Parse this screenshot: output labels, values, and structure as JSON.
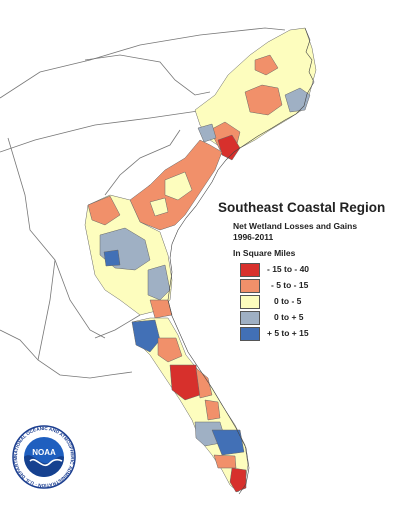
{
  "title": "Southeast Coastal Region",
  "subtitle_line1": "Net Wetland Losses and Gains",
  "subtitle_line2": "1996-2011",
  "units": "In Square Miles",
  "legend": [
    {
      "label": "- 15 to - 40",
      "color": "#d7302c"
    },
    {
      "label": "- 5 to - 15",
      "color": "#f1906a"
    },
    {
      "label": "0 to - 5",
      "color": "#fdfdbe"
    },
    {
      "label": "0 to + 5",
      "color": "#9fb0c4"
    },
    {
      "label": "+ 5 to + 15",
      "color": "#4270b6"
    }
  ],
  "logo": {
    "center_text": "NOAA",
    "ring_text": "NATIONAL OCEANIC AND ATMOSPHERIC ADMINISTRATION · U.S. DEPARTMENT OF COMMERCE"
  },
  "colors": {
    "loss_high": "#d7302c",
    "loss_mid": "#f1906a",
    "loss_low": "#fdfdbe",
    "gain_low": "#9fb0c4",
    "gain_mid": "#4270b6",
    "outline": "#666666",
    "background": "#ffffff"
  }
}
